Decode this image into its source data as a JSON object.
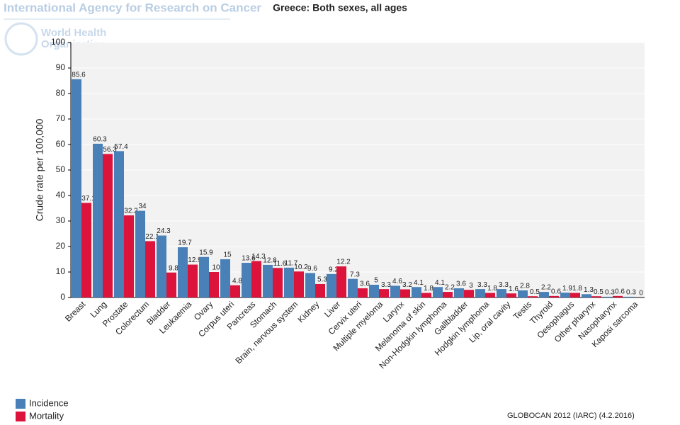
{
  "header": {
    "agency": "International Agency for Research on Cancer",
    "who_line1": "World Health",
    "who_line2": "Organization"
  },
  "footer": "GLOBOCAN 2012 (IARC) (4.2.2016)",
  "chart_data": {
    "type": "bar",
    "title": "Greece: Both sexes, all ages",
    "y_label": "Crude rate per 100,000",
    "categories": [
      "Breast",
      "Lung",
      "Prostate",
      "Colorectum",
      "Bladder",
      "Leukaemia",
      "Ovary",
      "Corpus uteri",
      "Pancreas",
      "Stomach",
      "Brain, nervous system",
      "Kidney",
      "Liver",
      "Cervix uteri",
      "Multiple myeloma",
      "Larynx",
      "Melanoma of skin",
      "Non-Hodgkin lymphoma",
      "Gallbladder",
      "Hodgkin lymphoma",
      "Lip, oral cavity",
      "Testis",
      "Thyroid",
      "Oesophagus",
      "Other pharynx",
      "Nasopharynx",
      "Kaposi sarcoma"
    ],
    "series": [
      {
        "name": "Incidence",
        "color": "#4a80b8",
        "values": [
          85.6,
          60.3,
          57.4,
          34,
          24.3,
          19.7,
          15.9,
          15,
          13.6,
          12.8,
          11.7,
          9.6,
          9.2,
          7.3,
          5,
          4.6,
          4.1,
          4.1,
          3.6,
          3.3,
          3.3,
          2.8,
          2.2,
          1.9,
          1.3,
          0.3,
          0.3
        ]
      },
      {
        "name": "Mortality",
        "color": "#dc143c",
        "values": [
          37.1,
          56.3,
          32.2,
          22.1,
          9.8,
          12.9,
          10,
          4.8,
          14.3,
          11.6,
          10.2,
          5.3,
          12.2,
          3.6,
          3.3,
          3.2,
          1.8,
          2.2,
          3,
          1.8,
          1.6,
          0.5,
          0.6,
          1.8,
          0.5,
          0.6,
          0
        ]
      }
    ],
    "ylim": [
      0,
      100
    ],
    "yticks": [
      0,
      10,
      20,
      30,
      40,
      50,
      60,
      70,
      80,
      90,
      100
    ],
    "grid": true,
    "legend": "bottom-left"
  }
}
